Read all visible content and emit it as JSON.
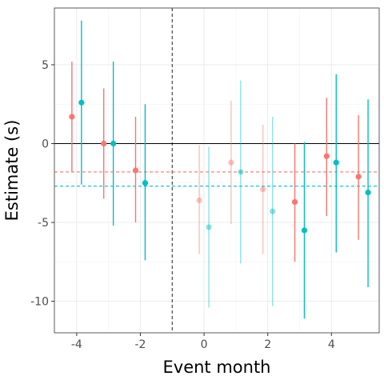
{
  "chart_data": {
    "type": "scatter",
    "subtype": "point-range event study",
    "title": "",
    "xlabel": "Event month",
    "ylabel": "Estimate (s)",
    "xlim": [
      -4.7,
      5.5
    ],
    "ylim": [
      -12.0,
      8.6
    ],
    "xticks": [
      -4,
      -2,
      0,
      2,
      4
    ],
    "xtick_labels": [
      "-4",
      "-2",
      "0",
      "2",
      "4"
    ],
    "yticks": [
      -10,
      -5,
      0,
      5
    ],
    "ytick_labels": [
      "-10",
      "-5",
      "0",
      "5"
    ],
    "grid": true,
    "legend": "none",
    "reference_lines": [
      {
        "orientation": "vertical",
        "value": -1,
        "style": "dashed",
        "color": "#333333"
      },
      {
        "orientation": "horizontal",
        "value": 0,
        "style": "solid",
        "color": "#000000"
      },
      {
        "orientation": "horizontal",
        "value": -1.8,
        "style": "dashed",
        "color": "#F8766D"
      },
      {
        "orientation": "horizontal",
        "value": -2.7,
        "style": "dashed",
        "color": "#00BFC4"
      }
    ],
    "series": [
      {
        "color": "#F8766D",
        "offset": -0.15,
        "x": [
          -4,
          -3,
          -2,
          0,
          1,
          2,
          3,
          4,
          5
        ],
        "y": [
          1.7,
          0.0,
          -1.7,
          -3.6,
          -1.2,
          -2.9,
          -3.7,
          -0.8,
          -2.1
        ],
        "lower": [
          -1.8,
          -3.5,
          -5.0,
          -7.0,
          -5.1,
          -7.0,
          -7.5,
          -4.6,
          -6.1
        ],
        "upper": [
          5.2,
          3.5,
          1.7,
          -0.1,
          2.7,
          1.2,
          0.0,
          2.9,
          1.8
        ],
        "faded": [
          false,
          false,
          false,
          true,
          true,
          true,
          false,
          false,
          false
        ]
      },
      {
        "color": "#00BFC4",
        "offset": 0.15,
        "x": [
          -4,
          -3,
          -2,
          0,
          1,
          2,
          3,
          4,
          5
        ],
        "y": [
          2.6,
          0.0,
          -2.5,
          -5.3,
          -1.8,
          -4.3,
          -5.5,
          -1.2,
          -3.1
        ],
        "lower": [
          -2.6,
          -5.2,
          -7.4,
          -10.4,
          -7.6,
          -10.3,
          -11.1,
          -6.9,
          -9.1
        ],
        "upper": [
          7.8,
          5.2,
          2.5,
          -0.2,
          4.0,
          1.7,
          0.1,
          4.4,
          2.8
        ],
        "faded": [
          false,
          false,
          false,
          true,
          true,
          true,
          false,
          false,
          false
        ]
      }
    ]
  }
}
